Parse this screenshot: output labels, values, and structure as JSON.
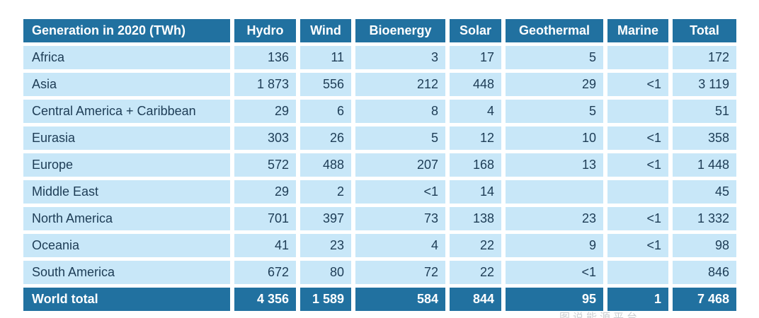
{
  "colors": {
    "header_bg": "#2171a0",
    "row_bg": "#c8e7f8",
    "total_bg": "#2171a0",
    "header_text": "#ffffff",
    "cell_text": "#1d3c55",
    "total_text": "#ffffff",
    "page_bg": "#ffffff"
  },
  "watermark": "图说能源平台",
  "chart_data": {
    "type": "table",
    "title": "Generation in 2020 (TWh)",
    "columns": [
      "Hydro",
      "Wind",
      "Bioenergy",
      "Solar",
      "Geothermal",
      "Marine",
      "Total"
    ],
    "rows": [
      {
        "region": "Africa",
        "values": [
          "136",
          "11",
          "3",
          "17",
          "5",
          "",
          "172"
        ]
      },
      {
        "region": "Asia",
        "values": [
          "1 873",
          "556",
          "212",
          "448",
          "29",
          "<1",
          "3 119"
        ]
      },
      {
        "region": "Central America + Caribbean",
        "values": [
          "29",
          "6",
          "8",
          "4",
          "5",
          "",
          "51"
        ]
      },
      {
        "region": "Eurasia",
        "values": [
          "303",
          "26",
          "5",
          "12",
          "10",
          "<1",
          "358"
        ]
      },
      {
        "region": "Europe",
        "values": [
          "572",
          "488",
          "207",
          "168",
          "13",
          "<1",
          "1 448"
        ]
      },
      {
        "region": "Middle East",
        "values": [
          "29",
          "2",
          "<1",
          "14",
          "",
          "",
          "45"
        ]
      },
      {
        "region": "North America",
        "values": [
          "701",
          "397",
          "73",
          "138",
          "23",
          "<1",
          "1 332"
        ]
      },
      {
        "region": "Oceania",
        "values": [
          "41",
          "23",
          "4",
          "22",
          "9",
          "<1",
          "98"
        ]
      },
      {
        "region": "South America",
        "values": [
          "672",
          "80",
          "72",
          "22",
          "<1",
          "",
          "846"
        ]
      }
    ],
    "total_row": {
      "region": "World total",
      "values": [
        "4 356",
        "1 589",
        "584",
        "844",
        "95",
        "1",
        "7 468"
      ]
    }
  }
}
